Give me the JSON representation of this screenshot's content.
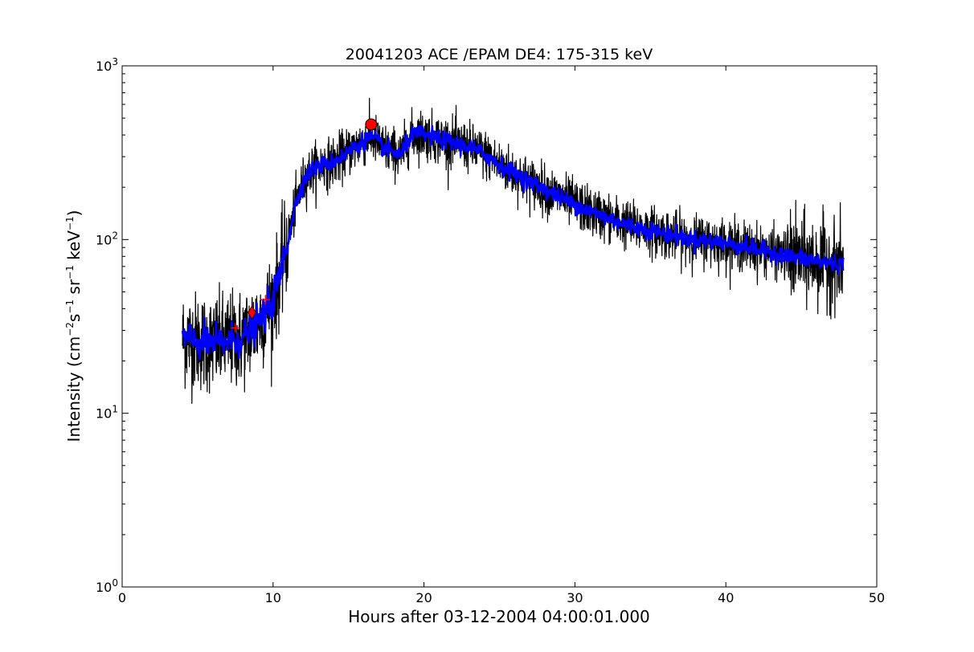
{
  "chart_data": {
    "type": "line",
    "title": "20041203 ACE /EPAM DE4: 175-315 keV",
    "xlabel": "Hours after 03-12-2004 04:00:01.000",
    "ylabel": {
      "prefix": "Intensity (cm",
      "exp1": "−2",
      "mid1": "s",
      "exp2": "−1",
      "mid2": " sr",
      "exp3": "−1",
      "mid3": " keV",
      "exp4": "−1",
      "suffix": ")"
    },
    "xlim": [
      0,
      50
    ],
    "ylim": [
      1,
      1000
    ],
    "yscale": "log",
    "grid": false,
    "x_ticks": [
      "0",
      "10",
      "20",
      "30",
      "40",
      "50"
    ],
    "y_ticks": [
      {
        "base": "10",
        "exp": "0"
      },
      {
        "base": "10",
        "exp": "1"
      },
      {
        "base": "10",
        "exp": "2"
      },
      {
        "base": "10",
        "exp": "3"
      }
    ],
    "colors": {
      "raw": "#000000",
      "smoothed": "#0000ff",
      "markers": "#ff0000"
    },
    "series": [
      {
        "style": "raw-black",
        "x": [
          4.0,
          5.0,
          6.0,
          7.0,
          8.0,
          8.5,
          9.0,
          9.5,
          10.0,
          10.5,
          11.0,
          11.5,
          12.0,
          12.5,
          13.0,
          14.0,
          15.0,
          16.0,
          16.5,
          17.0,
          17.5,
          18.0,
          18.5,
          19.0,
          19.5,
          20.0,
          21.0,
          22.0,
          23.0,
          24.0,
          25.0,
          26.0,
          27.0,
          28.0,
          29.0,
          30.0,
          31.0,
          32.0,
          33.0,
          34.0,
          35.0,
          36.0,
          37.0,
          38.0,
          39.0,
          40.0,
          41.0,
          42.0,
          43.0,
          44.0,
          45.0,
          46.0,
          47.0,
          47.8
        ],
        "y": [
          27,
          26,
          25,
          26,
          27,
          30,
          33,
          38,
          45,
          65,
          100,
          160,
          215,
          250,
          265,
          280,
          320,
          370,
          390,
          360,
          330,
          320,
          305,
          380,
          410,
          400,
          380,
          360,
          340,
          310,
          270,
          240,
          215,
          195,
          175,
          160,
          145,
          135,
          125,
          118,
          113,
          108,
          103,
          100,
          98,
          95,
          92,
          88,
          85,
          80,
          78,
          75,
          73,
          72
        ]
      },
      {
        "style": "smoothed-blue",
        "x": [
          4.0,
          5.0,
          6.0,
          7.0,
          8.0,
          8.5,
          9.0,
          9.5,
          10.0,
          10.5,
          11.0,
          11.5,
          12.0,
          12.5,
          13.0,
          14.0,
          15.0,
          16.0,
          16.5,
          17.0,
          17.5,
          18.0,
          18.5,
          19.0,
          19.5,
          20.0,
          21.0,
          22.0,
          23.0,
          24.0,
          25.0,
          26.0,
          27.0,
          28.0,
          29.0,
          30.0,
          31.0,
          32.0,
          33.0,
          34.0,
          35.0,
          36.0,
          37.0,
          38.0,
          39.0,
          40.0,
          41.0,
          42.0,
          43.0,
          44.0,
          45.0,
          46.0,
          47.0,
          47.8
        ],
        "y": [
          27,
          26,
          25,
          26,
          27,
          30,
          33,
          38,
          45,
          65,
          100,
          160,
          215,
          250,
          265,
          280,
          320,
          370,
          390,
          360,
          330,
          320,
          305,
          380,
          410,
          400,
          380,
          360,
          340,
          310,
          270,
          240,
          215,
          195,
          175,
          160,
          145,
          135,
          125,
          118,
          113,
          108,
          103,
          100,
          98,
          95,
          92,
          88,
          85,
          80,
          78,
          75,
          73,
          72
        ]
      }
    ],
    "markers": [
      {
        "kind": "circle",
        "x": 16.5,
        "y": 460
      },
      {
        "kind": "diamond",
        "x": 8.6,
        "y": 38
      },
      {
        "kind": "plus",
        "x": 7.5,
        "y": 31
      },
      {
        "kind": "plus",
        "x": 9.5,
        "y": 45
      }
    ]
  }
}
